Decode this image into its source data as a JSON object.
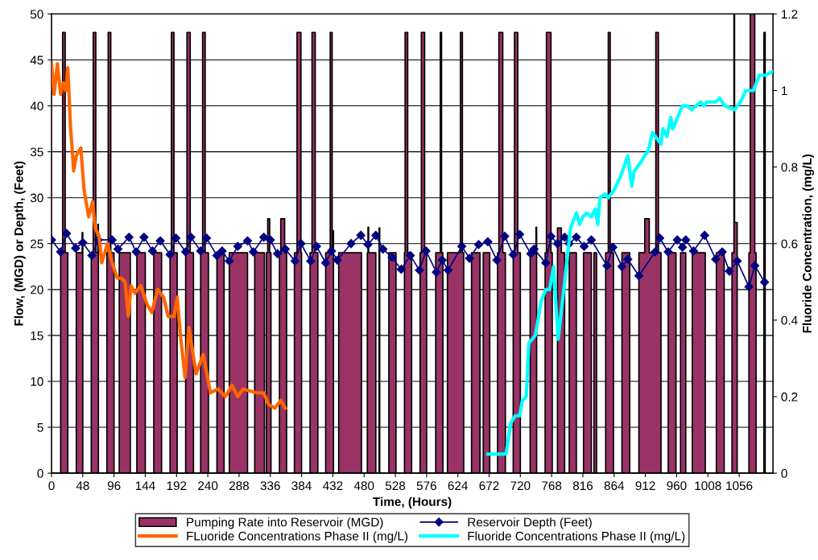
{
  "chart_data": {
    "type": "line",
    "xlabel": "Time, (Hours)",
    "ylabel": "Flow, (MGD) or Depth, (Feet)",
    "y2label": "Fluoride Concentration, (mg/L)",
    "xlim": [
      0,
      1108
    ],
    "xticks": [
      0,
      48,
      96,
      144,
      192,
      240,
      288,
      336,
      384,
      432,
      480,
      528,
      576,
      624,
      672,
      720,
      768,
      816,
      864,
      912,
      960,
      1008,
      1056
    ],
    "ylim": [
      0,
      50
    ],
    "yticks": [
      0,
      5,
      10,
      15,
      20,
      25,
      30,
      35,
      40,
      45,
      50
    ],
    "y2lim": [
      0,
      1.2
    ],
    "y2ticks": [
      0,
      0.2,
      0.4,
      0.6,
      0.8,
      1,
      1.2
    ],
    "grid": "y",
    "legend": "bottom",
    "series": [
      {
        "name": "Pumping Rate into Reservoir (MGD)",
        "type": "area",
        "color": "#993366",
        "x": [
          0,
          14,
          14,
          17,
          17,
          21,
          21,
          25,
          25,
          38,
          38,
          47,
          47,
          48,
          48,
          61,
          61,
          64,
          64,
          68,
          68,
          71,
          71,
          72,
          72,
          85,
          85,
          87,
          87,
          91,
          91,
          96,
          96,
          104,
          104,
          121,
          121,
          131,
          131,
          144,
          144,
          157,
          157,
          169,
          169,
          182,
          182,
          184,
          184,
          188,
          188,
          193,
          193,
          206,
          206,
          208,
          208,
          213,
          213,
          218,
          218,
          229,
          229,
          232,
          232,
          236,
          236,
          241,
          241,
          254,
          254,
          265,
          265,
          273,
          273,
          301,
          301,
          312,
          312,
          327,
          327,
          330,
          330,
          332,
          332,
          335,
          335,
          337,
          337,
          350,
          350,
          352,
          352,
          358,
          358,
          361,
          361,
          373,
          373,
          377,
          377,
          383,
          383,
          384,
          384,
          397,
          397,
          400,
          400,
          405,
          405,
          409,
          409,
          421,
          421,
          428,
          428,
          431,
          431,
          432,
          432,
          433,
          433,
          441,
          441,
          476,
          476,
          485,
          485,
          486,
          486,
          487,
          487,
          498,
          498,
          503,
          503,
          504,
          504,
          518,
          518,
          529,
          529,
          542,
          542,
          543,
          543,
          547,
          547,
          553,
          553,
          566,
          566,
          568,
          568,
          573,
          573,
          576,
          576,
          590,
          590,
          597,
          597,
          599,
          599,
          601,
          601,
          608,
          608,
          628,
          628,
          631,
          631,
          633,
          633,
          645,
          645,
          658,
          658,
          663,
          663,
          673,
          673,
          685,
          685,
          687,
          687,
          693,
          693,
          697,
          697,
          709,
          709,
          711,
          711,
          716,
          716,
          720,
          720,
          735,
          735,
          744,
          744,
          745,
          745,
          758,
          758,
          760,
          760,
          767,
          767,
          769,
          769,
          777,
          777,
          783,
          783,
          788,
          788,
          795,
          795,
          806,
          806,
          817,
          817,
          829,
          829,
          833,
          833,
          837,
          837,
          851,
          851,
          855,
          855,
          858,
          858,
          863,
          863,
          876,
          876,
          888,
          888,
          902,
          902,
          911,
          911,
          918,
          918,
          928,
          928,
          932,
          932,
          936,
          936,
          947,
          947,
          959,
          959,
          966,
          966,
          974,
          974,
          984,
          984,
          1004,
          1004,
          1021,
          1021,
          1033,
          1033,
          1045,
          1045,
          1048,
          1048,
          1049,
          1049,
          1053,
          1053,
          1071,
          1071,
          1073,
          1073,
          1080,
          1080,
          1082,
          1082,
          1094,
          1094,
          1096,
          1096
        ],
        "values": [
          0,
          0,
          24,
          24,
          48,
          48,
          24,
          24,
          0,
          0,
          24,
          24,
          26.2,
          26.2,
          0,
          0,
          24,
          24,
          48,
          48,
          24,
          24,
          27.1,
          27.1,
          0,
          0,
          24,
          24,
          48,
          48,
          24,
          24,
          0,
          0,
          24,
          24,
          0,
          0,
          24,
          24,
          0,
          0,
          24,
          24,
          0,
          0,
          24,
          24,
          48,
          48,
          24,
          24,
          0,
          0,
          24,
          24,
          48,
          48,
          24,
          24,
          0,
          0,
          24,
          24,
          48,
          48,
          24,
          24,
          0,
          0,
          24,
          24,
          0,
          0,
          24,
          24,
          0,
          0,
          24,
          24,
          0,
          0,
          24,
          24,
          27.7,
          27.7,
          24,
          24,
          0,
          0,
          24,
          24,
          27.7,
          27.7,
          24,
          24,
          0,
          0,
          24,
          24,
          48,
          48,
          24,
          24,
          0,
          0,
          24,
          24,
          48,
          48,
          24,
          24,
          0,
          0,
          24,
          24,
          48,
          48,
          24,
          24,
          26.4,
          26.4,
          0,
          0,
          24,
          24,
          0,
          0,
          24,
          24,
          26.8,
          26.8,
          24,
          24,
          0,
          0,
          26.7,
          26.7,
          0,
          0,
          24,
          24,
          0,
          0,
          24,
          24,
          48,
          48,
          24,
          24,
          0,
          0,
          24,
          24,
          48,
          48,
          24,
          24,
          0,
          0,
          24,
          24,
          48,
          48,
          24,
          24,
          0,
          0,
          24,
          24,
          48,
          48,
          24,
          24,
          0,
          0,
          24,
          24,
          0,
          0,
          24,
          24,
          0,
          0,
          24,
          24,
          48,
          48,
          24,
          24,
          0,
          0,
          24,
          24,
          48,
          48,
          24,
          24,
          0,
          0,
          24,
          24,
          26.8,
          26.8,
          0,
          0,
          24,
          24,
          48,
          48,
          24,
          24,
          0,
          0,
          26.7,
          26.7,
          24,
          24,
          0,
          0,
          24,
          24,
          0,
          0,
          24,
          24,
          0,
          0,
          24,
          24,
          0,
          0,
          24,
          24,
          48,
          48,
          24,
          24,
          0,
          0,
          24,
          24,
          0,
          0,
          24,
          24,
          27.7,
          27.7,
          24,
          24,
          48,
          48,
          24,
          24,
          0,
          0,
          24,
          24,
          0,
          0,
          24,
          24,
          0,
          0,
          24,
          24,
          0,
          0,
          24,
          24,
          0,
          0,
          24,
          24,
          50,
          50,
          27.3,
          27.3,
          0,
          0,
          24,
          24,
          50,
          50,
          24,
          24,
          0,
          0,
          48,
          48,
          0
        ]
      },
      {
        "name": "Reservoir Depth (Feet)",
        "color": "#000080",
        "marker": "diamond",
        "x": [
          0,
          14,
          23,
          37,
          48,
          62,
          72,
          93,
          102,
          119,
          130,
          142,
          155,
          167,
          182,
          191,
          206,
          214,
          229,
          238,
          254,
          262,
          273,
          286,
          301,
          310,
          326,
          336,
          347,
          359,
          374,
          383,
          398,
          407,
          421,
          430,
          439,
          460,
          475,
          486,
          498,
          509,
          523,
          537,
          551,
          565,
          575,
          591,
          600,
          609,
          630,
          642,
          656,
          670,
          684,
          696,
          709,
          719,
          736,
          741,
          759,
          767,
          777,
          788,
          795,
          806,
          818,
          829,
          853,
          862,
          876,
          885,
          902,
          927,
          934,
          947,
          961,
          969,
          974,
          986,
          1003,
          1020,
          1030,
          1041,
          1053,
          1071,
          1080,
          1095
        ],
        "values": [
          25.4,
          24.1,
          26.1,
          24.5,
          25.1,
          23.7,
          25.4,
          25.4,
          24.4,
          25.7,
          24.1,
          25.7,
          24.2,
          25.3,
          23.8,
          25.6,
          24.1,
          25.7,
          24.2,
          25.6,
          23.7,
          24.2,
          23.1,
          24.7,
          25.3,
          24.1,
          25.7,
          25.4,
          23.9,
          24.4,
          23.1,
          25.0,
          23.1,
          24.7,
          22.9,
          24.2,
          23.2,
          25.0,
          25.9,
          24.9,
          25.9,
          24.4,
          23.5,
          22.2,
          23.7,
          22.1,
          24.2,
          21.9,
          23.2,
          22.1,
          24.7,
          23.4,
          24.9,
          25.2,
          23.2,
          25.8,
          23.8,
          26.0,
          23.9,
          24.4,
          22.9,
          25.8,
          25.0,
          25.7,
          25.0,
          25.7,
          24.7,
          25.4,
          22.6,
          24.6,
          22.5,
          23.3,
          21.5,
          24.1,
          25.6,
          24.1,
          25.4,
          24.6,
          25.4,
          24.2,
          25.9,
          23.3,
          24.1,
          22.0,
          23.1,
          20.3,
          22.6,
          20.8
        ]
      },
      {
        "name": "FLuoride Concentrations Phase II (mg/L)",
        "color": "#ff6600",
        "axis": "y2",
        "x": [
          0,
          4,
          9,
          14,
          18,
          22,
          25,
          29,
          34,
          38,
          45,
          50,
          57,
          63,
          67,
          73,
          77,
          86,
          93,
          101,
          107,
          113,
          118,
          122,
          128,
          137,
          147,
          154,
          163,
          172,
          179,
          188,
          193,
          198,
          205,
          211,
          222,
          233,
          244,
          256,
          267,
          277,
          286,
          294,
          315,
          326,
          333,
          343,
          352,
          359
        ],
        "values": [
          1.07,
          0.99,
          1.07,
          0.99,
          1.02,
          1.0,
          1.06,
          0.91,
          0.79,
          0.83,
          0.85,
          0.74,
          0.67,
          0.71,
          0.64,
          0.62,
          0.55,
          0.6,
          0.55,
          0.51,
          0.51,
          0.5,
          0.41,
          0.49,
          0.47,
          0.49,
          0.44,
          0.42,
          0.48,
          0.46,
          0.41,
          0.41,
          0.46,
          0.36,
          0.25,
          0.38,
          0.26,
          0.31,
          0.21,
          0.22,
          0.2,
          0.23,
          0.2,
          0.22,
          0.21,
          0.21,
          0.18,
          0.17,
          0.19,
          0.17
        ]
      },
      {
        "name": "Fluoride Concentrations Phase II (mg/L)",
        "color": "#00ffff",
        "axis": "y2",
        "x": [
          670,
          698,
          705,
          712,
          719,
          723,
          729,
          733,
          743,
          752,
          759,
          765,
          771,
          778,
          788,
          797,
          806,
          811,
          816,
          822,
          829,
          835,
          839,
          842,
          850,
          855,
          864,
          875,
          885,
          891,
          895,
          904,
          911,
          916,
          923,
          936,
          939,
          945,
          951,
          954,
          969,
          976,
          983,
          990,
          997,
          1002,
          1006,
          1020,
          1026,
          1034,
          1049,
          1058,
          1066,
          1078,
          1087,
          1097,
          1107
        ],
        "values": [
          0.05,
          0.05,
          0.13,
          0.15,
          0.15,
          0.19,
          0.2,
          0.34,
          0.36,
          0.45,
          0.48,
          0.48,
          0.54,
          0.35,
          0.5,
          0.64,
          0.68,
          0.65,
          0.67,
          0.68,
          0.67,
          0.69,
          0.65,
          0.72,
          0.73,
          0.72,
          0.74,
          0.78,
          0.83,
          0.75,
          0.79,
          0.81,
          0.83,
          0.84,
          0.89,
          0.86,
          0.9,
          0.88,
          0.93,
          0.9,
          0.96,
          0.96,
          0.95,
          0.96,
          0.97,
          0.96,
          0.97,
          0.97,
          0.98,
          0.96,
          0.95,
          0.97,
          1.0,
          1.0,
          1.04,
          1.04,
          1.05
        ]
      }
    ]
  }
}
